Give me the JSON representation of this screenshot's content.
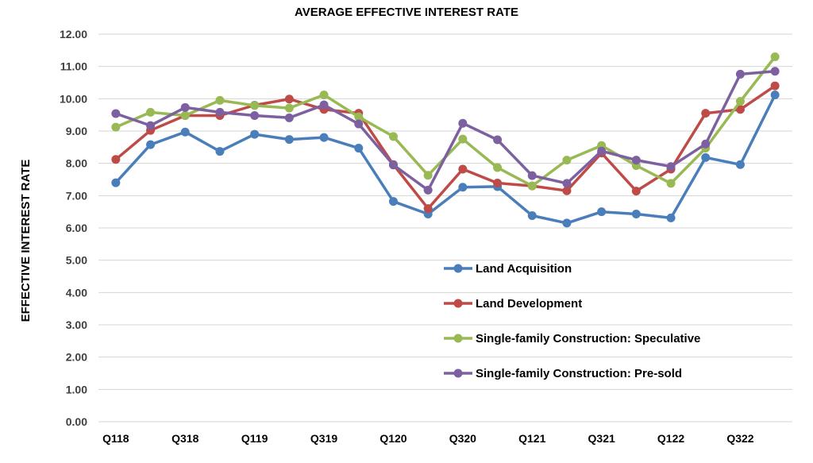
{
  "chart_data": {
    "type": "line",
    "title": "AVERAGE EFFECTIVE INTEREST RATE",
    "xlabel": "",
    "ylabel": "EFFECTIVE INTEREST RATE",
    "ylim": [
      0,
      12
    ],
    "yticks": [
      "0.00",
      "1.00",
      "2.00",
      "3.00",
      "4.00",
      "5.00",
      "6.00",
      "7.00",
      "8.00",
      "9.00",
      "10.00",
      "11.00",
      "12.00"
    ],
    "x": [
      "Q118",
      "Q218",
      "Q318",
      "Q418",
      "Q119",
      "Q219",
      "Q319",
      "Q419",
      "Q120",
      "Q220",
      "Q320",
      "Q420",
      "Q121",
      "Q221",
      "Q321",
      "Q421",
      "Q122",
      "Q222",
      "Q322",
      "Q422"
    ],
    "xtick_labels": [
      "Q118",
      "",
      "Q318",
      "",
      "Q119",
      "",
      "Q319",
      "",
      "Q120",
      "",
      "Q320",
      "",
      "Q121",
      "",
      "Q321",
      "",
      "Q122",
      "",
      "Q322",
      ""
    ],
    "grid": true,
    "legend_position": "lower-right",
    "series": [
      {
        "name": "Land Acquisition",
        "color": "#4a7ebb",
        "values": [
          7.4,
          8.58,
          8.97,
          8.37,
          8.9,
          8.74,
          8.8,
          8.47,
          6.82,
          6.43,
          7.26,
          7.28,
          6.38,
          6.15,
          6.5,
          6.43,
          6.31,
          8.18,
          7.96,
          10.12
        ]
      },
      {
        "name": "Land Development",
        "color": "#be4b48",
        "values": [
          8.12,
          9.02,
          9.48,
          9.48,
          9.8,
          9.99,
          9.67,
          9.55,
          7.96,
          6.6,
          7.82,
          7.39,
          7.3,
          7.15,
          8.32,
          7.14,
          7.82,
          9.55,
          9.67,
          10.4
        ]
      },
      {
        "name": "Single-family Construction: Speculative",
        "color": "#98b954",
        "values": [
          9.12,
          9.58,
          9.48,
          9.95,
          9.79,
          9.71,
          10.12,
          9.44,
          8.83,
          7.63,
          8.75,
          7.87,
          7.3,
          8.1,
          8.55,
          7.93,
          7.38,
          8.47,
          9.92,
          11.3
        ]
      },
      {
        "name": "Single-family Construction: Pre-sold",
        "color": "#7d60a0",
        "values": [
          9.54,
          9.17,
          9.73,
          9.58,
          9.48,
          9.41,
          9.81,
          9.22,
          7.95,
          7.17,
          9.24,
          8.73,
          7.62,
          7.38,
          8.38,
          8.1,
          7.9,
          8.6,
          10.76,
          10.85
        ]
      }
    ]
  }
}
